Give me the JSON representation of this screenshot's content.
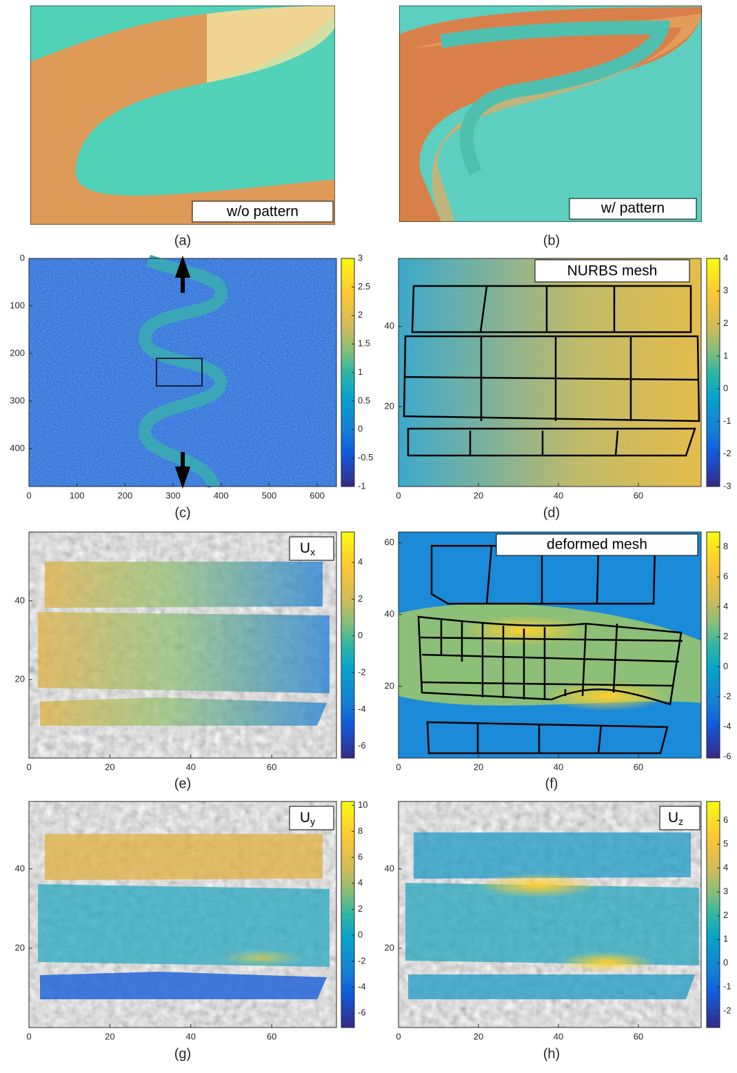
{
  "panels": [
    {
      "label": "(a)",
      "inset": "w/o pattern"
    },
    {
      "label": "(b)",
      "inset": "w/ pattern"
    },
    {
      "label": "(c)",
      "xticks": [
        0,
        100,
        200,
        300,
        400,
        500,
        600
      ],
      "yticks": [
        0,
        100,
        200,
        300,
        400
      ],
      "xlim": [
        0,
        640
      ],
      "ylim": [
        0,
        480
      ],
      "y_reversed": true,
      "colorbar_ticks": [
        -1,
        -0.5,
        0,
        0.5,
        1,
        1.5,
        2,
        2.5,
        3
      ],
      "clim": [
        -1,
        3
      ]
    },
    {
      "label": "(d)",
      "inset": "NURBS mesh",
      "xticks": [
        0,
        20,
        40,
        60
      ],
      "yticks": [
        20,
        40
      ],
      "xlim": [
        0,
        75.7
      ],
      "ylim": [
        0,
        57
      ],
      "colorbar_ticks": [
        -3,
        -2,
        -1,
        0,
        1,
        2,
        3,
        4
      ],
      "clim": [
        -3,
        4
      ]
    },
    {
      "label": "(e)",
      "inset_symbol": {
        "main": "U",
        "sub": "x"
      },
      "xticks": [
        0,
        20,
        40,
        60
      ],
      "yticks": [
        20,
        40
      ],
      "xlim": [
        0,
        76
      ],
      "ylim": [
        0,
        57.5
      ],
      "colorbar_ticks": [
        -6,
        -4,
        -2,
        0,
        2,
        4
      ],
      "clim": [
        -6.65,
        5.65
      ]
    },
    {
      "label": "(f)",
      "inset": "deformed mesh",
      "xticks": [
        0,
        20,
        40,
        60
      ],
      "yticks": [
        20,
        40,
        60
      ],
      "xlim": [
        0,
        75.7
      ],
      "ylim": [
        0,
        63
      ],
      "colorbar_ticks": [
        -6,
        -4,
        -2,
        0,
        2,
        4,
        6,
        8
      ],
      "clim": [
        -6.1,
        9
      ]
    },
    {
      "label": "(g)",
      "inset_symbol": {
        "main": "U",
        "sub": "y"
      },
      "xticks": [
        0,
        20,
        40,
        60
      ],
      "yticks": [
        20,
        40
      ],
      "xlim": [
        0,
        76
      ],
      "ylim": [
        0,
        57
      ],
      "colorbar_ticks": [
        -6,
        -4,
        -2,
        0,
        2,
        4,
        6,
        8,
        10
      ],
      "clim": [
        -7.1,
        10.3
      ]
    },
    {
      "label": "(h)",
      "inset_symbol": {
        "main": "U",
        "sub": "z"
      },
      "xticks": [
        0,
        20,
        40,
        60
      ],
      "yticks": [
        20,
        40
      ],
      "xlim": [
        0,
        75.7
      ],
      "ylim": [
        0,
        57
      ],
      "colorbar_ticks": [
        -2,
        -1,
        0,
        1,
        2,
        3,
        4,
        5,
        6
      ],
      "clim": [
        -2.7,
        6.8
      ]
    }
  ]
}
